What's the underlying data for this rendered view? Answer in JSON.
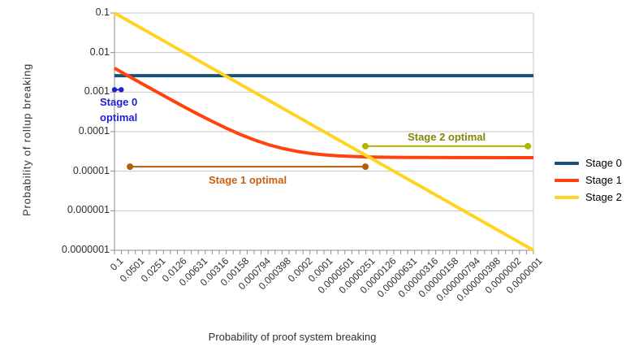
{
  "chart_data": {
    "type": "line",
    "title": "",
    "xlabel": "Probability of proof system breaking",
    "ylabel": "Probability of rollup breaking",
    "x_scale": "log",
    "y_scale": "log",
    "x_range": [
      0.1,
      1e-07
    ],
    "y_range": [
      0.1,
      1e-07
    ],
    "grid": "horizontal",
    "legend_position": "right",
    "x_ticks": [
      "0.1",
      "0.0501",
      "0.0251",
      "0.0126",
      "0.00631",
      "0.00316",
      "0.00158",
      "0.000794",
      "0.000398",
      "0.0002",
      "0.0001",
      "0.0000501",
      "0.0000251",
      "0.0000126",
      "0.00000631",
      "0.00000316",
      "0.00000158",
      "0.000000794",
      "0.000000398",
      "0.0000002",
      "0.0000001"
    ],
    "y_ticks": [
      "0.1",
      "0.01",
      "0.001",
      "0.0001",
      "0.00001",
      "0.000001",
      "0.0000001"
    ],
    "series": [
      {
        "name": "Stage 0",
        "color": "#17527f",
        "points": [
          [
            0.1,
            0.0026
          ],
          [
            1e-07,
            0.0026
          ]
        ]
      },
      {
        "name": "Stage 1",
        "color": "#ff420e",
        "points": [
          [
            0.1,
            0.004022
          ],
          [
            0.0631,
            0.002546
          ],
          [
            0.0398,
            0.001614
          ],
          [
            0.0251,
            0.001026
          ],
          [
            0.0158,
            0.000654
          ],
          [
            0.01,
            0.000422
          ],
          [
            0.00631,
            0.0002744
          ],
          [
            0.00398,
            0.0001812
          ],
          [
            0.00251,
            0.0001224
          ],
          [
            0.00158,
            8.52e-05
          ],
          [
            0.001,
            6.2e-05
          ],
          [
            0.000631,
            4.72e-05
          ],
          [
            0.000398,
            3.79e-05
          ],
          [
            0.000251,
            3.2e-05
          ],
          [
            0.000158,
            2.83e-05
          ],
          [
            0.0001,
            2.6e-05
          ],
          [
            6.31e-05,
            2.45e-05
          ],
          [
            3.98e-05,
            2.36e-05
          ],
          [
            2.51e-05,
            2.3e-05
          ],
          [
            1.58e-05,
            2.26e-05
          ],
          [
            1e-05,
            2.24e-05
          ],
          [
            3.98e-06,
            2.22e-05
          ],
          [
            1.58e-06,
            2.21e-05
          ],
          [
            1e-07,
            2.2e-05
          ]
        ]
      },
      {
        "name": "Stage 2",
        "color": "#ffd320",
        "points": [
          [
            0.1,
            0.1
          ],
          [
            1e-07,
            1e-07
          ]
        ]
      }
    ],
    "annotations": [
      {
        "label": "Stage 0\noptimal",
        "text_color": "#2020cc",
        "line_color": "#2020cc",
        "y": 0.00115,
        "x_start": 0.1,
        "x_end": 0.08,
        "placement": "below-left"
      },
      {
        "label": "Stage 1 optimal",
        "text_color": "#c9600f",
        "line_color": "#b45f06",
        "y": 1.3e-05,
        "x_start": 0.06,
        "x_end": 2.55e-05,
        "placement": "below-center"
      },
      {
        "label": "Stage 2 optimal",
        "text_color": "#85850a",
        "line_color": "#b3b300",
        "y": 4.3e-05,
        "x_start": 2.55e-05,
        "x_end": 1.2e-07,
        "placement": "above-center"
      }
    ],
    "colors": {
      "gridline": "#c6c6c6",
      "axis": "#8f8f8f",
      "tick_label": "#2e2e2e"
    }
  }
}
